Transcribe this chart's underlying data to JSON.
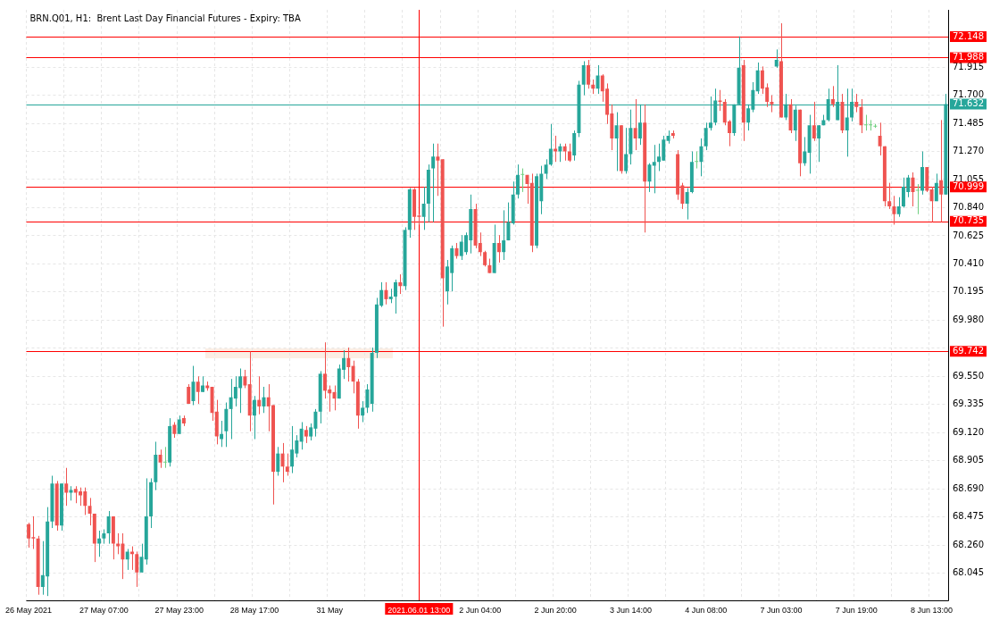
{
  "chart_data": {
    "type": "candlestick",
    "title": "BRN.Q01, H1:  Brent Last Day Financial Futures - Expiry: TBA",
    "categories": [
      "26 May 2021",
      null,
      null,
      null,
      null,
      null,
      null,
      null,
      null,
      null,
      null,
      null,
      null,
      null,
      null,
      null,
      "27 May 07:00",
      null,
      null,
      null,
      null,
      null,
      null,
      null,
      null,
      null,
      null,
      null,
      null,
      null,
      null,
      null,
      "27 May 23:00",
      null,
      null,
      null,
      null,
      null,
      null,
      null,
      null,
      null,
      null,
      null,
      null,
      null,
      null,
      null,
      "28 May 17:00",
      null,
      null,
      null,
      null,
      null,
      null,
      null,
      null,
      null,
      null,
      null,
      null,
      null,
      null,
      null,
      "31 May",
      null,
      null,
      null,
      null,
      null,
      null,
      null,
      null,
      null,
      null,
      null,
      null,
      null,
      null,
      null,
      null,
      null,
      null,
      "2021.06.01 13:00",
      null,
      null,
      null,
      null,
      null,
      null,
      null,
      null,
      null,
      null,
      null,
      null,
      "2 Jun 04:00",
      null,
      null,
      null,
      null,
      null,
      null,
      null,
      null,
      null,
      null,
      null,
      null,
      null,
      null,
      null,
      "2 Jun 20:00",
      null,
      null,
      null,
      null,
      null,
      null,
      null,
      null,
      null,
      null,
      null,
      null,
      null,
      null,
      null,
      "3 Jun 14:00",
      null,
      null,
      null,
      null,
      null,
      null,
      null,
      null,
      null,
      null,
      null,
      null,
      null,
      null,
      null,
      "4 Jun 08:00",
      null,
      null,
      null,
      null,
      null,
      null,
      null,
      null,
      null,
      null,
      null,
      null,
      null,
      null,
      null,
      "7 Jun 03:00",
      null,
      null,
      null,
      null,
      null,
      null,
      null,
      null,
      null,
      null,
      null,
      null,
      null,
      null,
      null,
      "7 Jun 19:00",
      null,
      null,
      null,
      null,
      null,
      null,
      null,
      null,
      null,
      null,
      null,
      null,
      null,
      null,
      null,
      "8 Jun 13:00",
      null,
      null,
      null
    ],
    "ohlc": [
      [
        68.42,
        68.43,
        68.24,
        68.31
      ],
      [
        68.32,
        68.48,
        68.23,
        68.31
      ],
      [
        68.31,
        68.33,
        67.88,
        67.94
      ],
      [
        67.94,
        68.29,
        67.88,
        68.03
      ],
      [
        68.02,
        68.55,
        67.87,
        68.44
      ],
      [
        68.44,
        68.79,
        68.39,
        68.73
      ],
      [
        68.73,
        68.75,
        68.37,
        68.41
      ],
      [
        68.41,
        68.73,
        68.37,
        68.73
      ],
      [
        68.73,
        68.85,
        68.56,
        68.66
      ],
      [
        68.66,
        68.71,
        68.6,
        68.68
      ],
      [
        68.69,
        68.71,
        68.58,
        68.66
      ],
      [
        68.67,
        68.7,
        68.56,
        68.64
      ],
      [
        68.67,
        68.7,
        68.49,
        68.56
      ],
      [
        68.56,
        68.62,
        68.41,
        68.5
      ],
      [
        68.5,
        68.5,
        68.13,
        68.27
      ],
      [
        68.27,
        68.37,
        68.17,
        68.31
      ],
      [
        68.31,
        68.38,
        68.27,
        68.35
      ],
      [
        68.35,
        68.52,
        68.27,
        68.48
      ],
      [
        68.48,
        68.48,
        68.15,
        68.27
      ],
      [
        68.27,
        68.35,
        68.19,
        68.25
      ],
      [
        68.27,
        68.35,
        68.0,
        68.15
      ],
      [
        68.15,
        68.23,
        68.07,
        68.21
      ],
      [
        68.21,
        68.25,
        68.07,
        68.19
      ],
      [
        68.19,
        68.21,
        67.94,
        68.05
      ],
      [
        68.05,
        68.27,
        68.05,
        68.17
      ],
      [
        68.15,
        68.77,
        68.11,
        68.48
      ],
      [
        68.48,
        68.77,
        68.39,
        68.74
      ],
      [
        68.74,
        69.05,
        68.68,
        68.95
      ],
      [
        68.95,
        68.99,
        68.85,
        68.89
      ],
      [
        68.89,
        69.01,
        68.85,
        68.89
      ],
      [
        68.89,
        69.23,
        68.86,
        69.17
      ],
      [
        69.18,
        69.2,
        69.08,
        69.11
      ],
      [
        69.11,
        69.25,
        69.11,
        69.22
      ],
      [
        69.23,
        69.25,
        69.17,
        69.19
      ],
      [
        69.47,
        69.49,
        69.34,
        69.34
      ],
      [
        69.36,
        69.63,
        69.33,
        69.51
      ],
      [
        69.51,
        69.55,
        69.34,
        69.43
      ],
      [
        69.43,
        69.55,
        69.43,
        69.48
      ],
      [
        69.48,
        69.51,
        69.44,
        69.46
      ],
      [
        69.47,
        69.47,
        69.21,
        69.27
      ],
      [
        69.28,
        69.37,
        69.03,
        69.09
      ],
      [
        69.07,
        69.21,
        69.01,
        69.11
      ],
      [
        69.13,
        69.35,
        69.01,
        69.3
      ],
      [
        69.3,
        69.53,
        69.07,
        69.39
      ],
      [
        69.38,
        69.55,
        69.32,
        69.47
      ],
      [
        69.46,
        69.61,
        69.27,
        69.55
      ],
      [
        69.55,
        69.6,
        69.46,
        69.48
      ],
      [
        69.49,
        69.74,
        69.13,
        69.25
      ],
      [
        69.25,
        69.4,
        69.07,
        69.37
      ],
      [
        69.37,
        69.55,
        69.26,
        69.32
      ],
      [
        69.32,
        69.47,
        69.27,
        69.39
      ],
      [
        69.39,
        69.49,
        69.13,
        69.32
      ],
      [
        69.33,
        69.33,
        68.57,
        68.82
      ],
      [
        68.82,
        69.01,
        68.79,
        68.96
      ],
      [
        68.96,
        69.04,
        68.74,
        68.86
      ],
      [
        68.86,
        68.96,
        68.79,
        68.82
      ],
      [
        68.86,
        69.17,
        68.81,
        68.99
      ],
      [
        68.96,
        69.1,
        68.93,
        69.06
      ],
      [
        69.05,
        69.2,
        68.99,
        69.15
      ],
      [
        69.14,
        69.17,
        69.04,
        69.09
      ],
      [
        69.09,
        69.19,
        69.06,
        69.16
      ],
      [
        69.15,
        69.3,
        69.09,
        69.28
      ],
      [
        69.28,
        69.59,
        69.19,
        69.57
      ],
      [
        69.57,
        69.81,
        69.38,
        69.44
      ],
      [
        69.45,
        69.48,
        69.28,
        69.42
      ],
      [
        69.43,
        69.48,
        69.29,
        69.38
      ],
      [
        69.38,
        69.64,
        69.38,
        69.61
      ],
      [
        69.6,
        69.75,
        69.53,
        69.69
      ],
      [
        69.69,
        69.77,
        69.51,
        69.62
      ],
      [
        69.63,
        69.67,
        69.42,
        69.51
      ],
      [
        69.51,
        69.53,
        69.15,
        69.25
      ],
      [
        69.25,
        69.36,
        69.2,
        69.31
      ],
      [
        69.31,
        69.49,
        69.27,
        69.45
      ],
      [
        69.34,
        69.77,
        69.28,
        69.73
      ],
      [
        69.73,
        70.15,
        69.69,
        70.1
      ],
      [
        70.09,
        70.27,
        70.08,
        70.21
      ],
      [
        70.21,
        70.27,
        70.1,
        70.14
      ],
      [
        70.14,
        70.22,
        70.11,
        70.16
      ],
      [
        70.16,
        70.29,
        70.03,
        70.27
      ],
      [
        70.27,
        70.33,
        70.18,
        70.24
      ],
      [
        70.24,
        70.69,
        70.21,
        70.67
      ],
      [
        70.67,
        70.99,
        70.61,
        70.98
      ],
      [
        70.98,
        70.99,
        70.67,
        70.77
      ],
      [
        70.78,
        70.79,
        70.71,
        70.77
      ],
      [
        70.77,
        71.0,
        70.67,
        70.87
      ],
      [
        70.87,
        71.17,
        70.73,
        71.13
      ],
      [
        71.14,
        71.33,
        70.73,
        71.23
      ],
      [
        71.23,
        71.33,
        70.93,
        71.2
      ],
      [
        71.21,
        71.21,
        69.93,
        70.3
      ],
      [
        70.2,
        70.44,
        70.1,
        70.39
      ],
      [
        70.34,
        70.55,
        70.2,
        70.53
      ],
      [
        70.53,
        70.57,
        70.45,
        70.47
      ],
      [
        70.47,
        70.63,
        70.44,
        70.58
      ],
      [
        70.5,
        70.65,
        70.48,
        70.63
      ],
      [
        70.59,
        70.94,
        70.49,
        70.83
      ],
      [
        70.83,
        70.87,
        70.53,
        70.55
      ],
      [
        70.57,
        70.65,
        70.47,
        70.5
      ],
      [
        70.5,
        70.51,
        70.39,
        70.4
      ],
      [
        70.4,
        70.45,
        70.34,
        70.34
      ],
      [
        70.34,
        70.71,
        70.34,
        70.57
      ],
      [
        70.57,
        70.63,
        70.42,
        70.5
      ],
      [
        70.5,
        70.82,
        70.44,
        70.59
      ],
      [
        70.59,
        70.88,
        70.59,
        70.73
      ],
      [
        70.72,
        71.04,
        70.71,
        70.94
      ],
      [
        70.94,
        71.17,
        70.91,
        71.09
      ],
      [
        71.09,
        71.14,
        70.96,
        71.09
      ],
      [
        71.09,
        71.09,
        70.87,
        71.02
      ],
      [
        71.03,
        71.1,
        70.5,
        70.55
      ],
      [
        70.55,
        71.1,
        70.53,
        71.08
      ],
      [
        70.89,
        71.16,
        70.79,
        71.1
      ],
      [
        71.1,
        71.21,
        71.06,
        71.17
      ],
      [
        71.17,
        71.48,
        71.16,
        71.29
      ],
      [
        71.29,
        71.39,
        71.19,
        71.27
      ],
      [
        71.27,
        71.33,
        71.19,
        71.31
      ],
      [
        71.31,
        71.33,
        71.2,
        71.27
      ],
      [
        71.27,
        71.33,
        71.19,
        71.2
      ],
      [
        71.24,
        71.43,
        71.2,
        71.41
      ],
      [
        71.41,
        71.81,
        71.38,
        71.78
      ],
      [
        71.78,
        71.96,
        71.7,
        71.93
      ],
      [
        71.93,
        71.97,
        71.75,
        71.78
      ],
      [
        71.78,
        71.82,
        71.71,
        71.75
      ],
      [
        71.75,
        71.93,
        71.71,
        71.85
      ],
      [
        71.85,
        71.86,
        71.65,
        71.73
      ],
      [
        71.75,
        71.79,
        71.48,
        71.55
      ],
      [
        71.56,
        71.63,
        71.28,
        71.37
      ],
      [
        71.37,
        71.57,
        71.12,
        71.47
      ],
      [
        71.47,
        71.47,
        71.1,
        71.12
      ],
      [
        71.12,
        71.45,
        71.1,
        71.25
      ],
      [
        71.25,
        71.59,
        71.17,
        71.45
      ],
      [
        71.45,
        71.67,
        71.28,
        71.37
      ],
      [
        71.37,
        71.63,
        71.32,
        71.49
      ],
      [
        71.49,
        71.63,
        70.65,
        71.04
      ],
      [
        71.04,
        71.18,
        70.96,
        71.17
      ],
      [
        71.16,
        71.32,
        70.95,
        71.19
      ],
      [
        71.19,
        71.33,
        71.12,
        71.23
      ],
      [
        71.2,
        71.39,
        71.2,
        71.36
      ],
      [
        71.35,
        71.43,
        71.33,
        71.39
      ],
      [
        71.41,
        71.43,
        71.37,
        71.39
      ],
      [
        71.25,
        71.28,
        70.9,
        70.94
      ],
      [
        71.01,
        71.03,
        70.83,
        70.87
      ],
      [
        70.87,
        70.99,
        70.75,
        70.96
      ],
      [
        70.96,
        71.27,
        70.95,
        71.19
      ],
      [
        71.19,
        71.27,
        71.14,
        71.19
      ],
      [
        71.19,
        71.37,
        71.08,
        71.31
      ],
      [
        71.31,
        71.49,
        71.28,
        71.45
      ],
      [
        71.45,
        71.69,
        71.43,
        71.49
      ],
      [
        71.49,
        71.75,
        71.47,
        71.66
      ],
      [
        71.66,
        71.74,
        71.58,
        71.65
      ],
      [
        71.65,
        71.67,
        71.47,
        71.49
      ],
      [
        71.5,
        71.51,
        71.31,
        71.41
      ],
      [
        71.41,
        71.63,
        71.39,
        71.63
      ],
      [
        71.63,
        72.15,
        71.63,
        71.91
      ],
      [
        71.93,
        71.97,
        71.35,
        71.49
      ],
      [
        71.49,
        71.63,
        71.43,
        71.6
      ],
      [
        71.59,
        71.8,
        71.57,
        71.74
      ],
      [
        71.73,
        71.95,
        71.71,
        71.89
      ],
      [
        71.89,
        71.92,
        71.71,
        71.75
      ],
      [
        71.76,
        71.79,
        71.61,
        71.65
      ],
      [
        71.65,
        71.7,
        71.57,
        71.63
      ],
      [
        71.92,
        72.05,
        71.91,
        71.97
      ],
      [
        71.96,
        72.25,
        71.53,
        71.53
      ],
      [
        71.53,
        71.71,
        71.51,
        71.63
      ],
      [
        71.63,
        71.67,
        71.41,
        71.43
      ],
      [
        71.43,
        71.62,
        71.35,
        71.59
      ],
      [
        71.59,
        71.59,
        71.08,
        71.18
      ],
      [
        71.18,
        71.38,
        71.16,
        71.27
      ],
      [
        71.26,
        71.55,
        71.1,
        71.47
      ],
      [
        71.47,
        71.65,
        71.35,
        71.37
      ],
      [
        71.37,
        71.47,
        71.19,
        71.47
      ],
      [
        71.47,
        71.55,
        71.47,
        71.51
      ],
      [
        71.51,
        71.75,
        71.5,
        71.67
      ],
      [
        71.67,
        71.77,
        71.61,
        71.63
      ],
      [
        71.51,
        71.93,
        71.51,
        71.65
      ],
      [
        71.65,
        71.71,
        71.41,
        71.43
      ],
      [
        71.43,
        71.75,
        71.23,
        71.53
      ],
      [
        71.53,
        71.75,
        71.5,
        71.65
      ],
      [
        71.65,
        71.71,
        71.57,
        71.61
      ],
      [
        71.61,
        71.67,
        71.41,
        71.47
      ],
      [
        71.47,
        71.55,
        71.43,
        71.47
      ],
      [
        71.47,
        71.51,
        71.43,
        71.47
      ],
      [
        71.46,
        71.48,
        71.45,
        71.46
      ],
      [
        71.39,
        71.49,
        71.24,
        71.31
      ],
      [
        71.31,
        71.31,
        70.85,
        70.89
      ],
      [
        70.89,
        71.03,
        70.83,
        70.85
      ],
      [
        70.85,
        70.93,
        70.71,
        70.79
      ],
      [
        70.79,
        70.92,
        70.77,
        70.85
      ],
      [
        70.85,
        71.07,
        70.84,
        71.0
      ],
      [
        70.96,
        71.09,
        70.92,
        71.07
      ],
      [
        71.07,
        71.11,
        70.85,
        70.96
      ],
      [
        70.97,
        71.02,
        70.79,
        70.97
      ],
      [
        70.97,
        71.27,
        70.94,
        71.15
      ],
      [
        71.15,
        71.15,
        70.96,
        70.97
      ],
      [
        70.98,
        71.0,
        70.73,
        70.89
      ],
      [
        70.89,
        71.1,
        70.89,
        71.03
      ],
      [
        71.05,
        71.51,
        70.73,
        70.94
      ],
      [
        70.94,
        71.71,
        70.94,
        71.632
      ]
    ],
    "ylim": [
      67.837,
      72.353
    ],
    "yticks": [
      {
        "value": 68.045,
        "label": "68.045"
      },
      {
        "value": 68.26,
        "label": "68.260"
      },
      {
        "value": 68.475,
        "label": "68.475"
      },
      {
        "value": 68.69,
        "label": "68.690"
      },
      {
        "value": 68.905,
        "label": "68.905"
      },
      {
        "value": 69.12,
        "label": "69.120"
      },
      {
        "value": 69.335,
        "label": "69.335"
      },
      {
        "value": 69.55,
        "label": "69.550"
      },
      {
        "value": 69.765,
        "label": null
      },
      {
        "value": 69.98,
        "label": "69.980"
      },
      {
        "value": 70.195,
        "label": "70.195"
      },
      {
        "value": 70.41,
        "label": "70.410"
      },
      {
        "value": 70.625,
        "label": "70.625"
      },
      {
        "value": 70.84,
        "label": "70.840"
      },
      {
        "value": 71.055,
        "label": "71.055"
      },
      {
        "value": 71.27,
        "label": "71.270"
      },
      {
        "value": 71.485,
        "label": "71.485"
      },
      {
        "value": 71.7,
        "label": "71.700"
      },
      {
        "value": 71.915,
        "label": "71.915"
      }
    ],
    "ref_lines": [
      {
        "axis": "y",
        "value": 72.148,
        "label": "72.148",
        "color": "#ff0000"
      },
      {
        "axis": "y",
        "value": 71.988,
        "label": "71.988",
        "color": "#ff0000"
      },
      {
        "axis": "y",
        "value": 71.632,
        "label": "71.632",
        "color": "#26a69a"
      },
      {
        "axis": "y",
        "value": 70.999,
        "label": "70.999",
        "color": "#ff0000"
      },
      {
        "axis": "y",
        "value": 70.735,
        "label": "70.735",
        "color": "#ff0000"
      },
      {
        "axis": "y",
        "value": 69.742,
        "label": "69.742",
        "color": "#ff0000"
      },
      {
        "axis": "x",
        "value": "2021.06.01 13:00",
        "color": "#ff0000"
      }
    ],
    "grid": true
  }
}
